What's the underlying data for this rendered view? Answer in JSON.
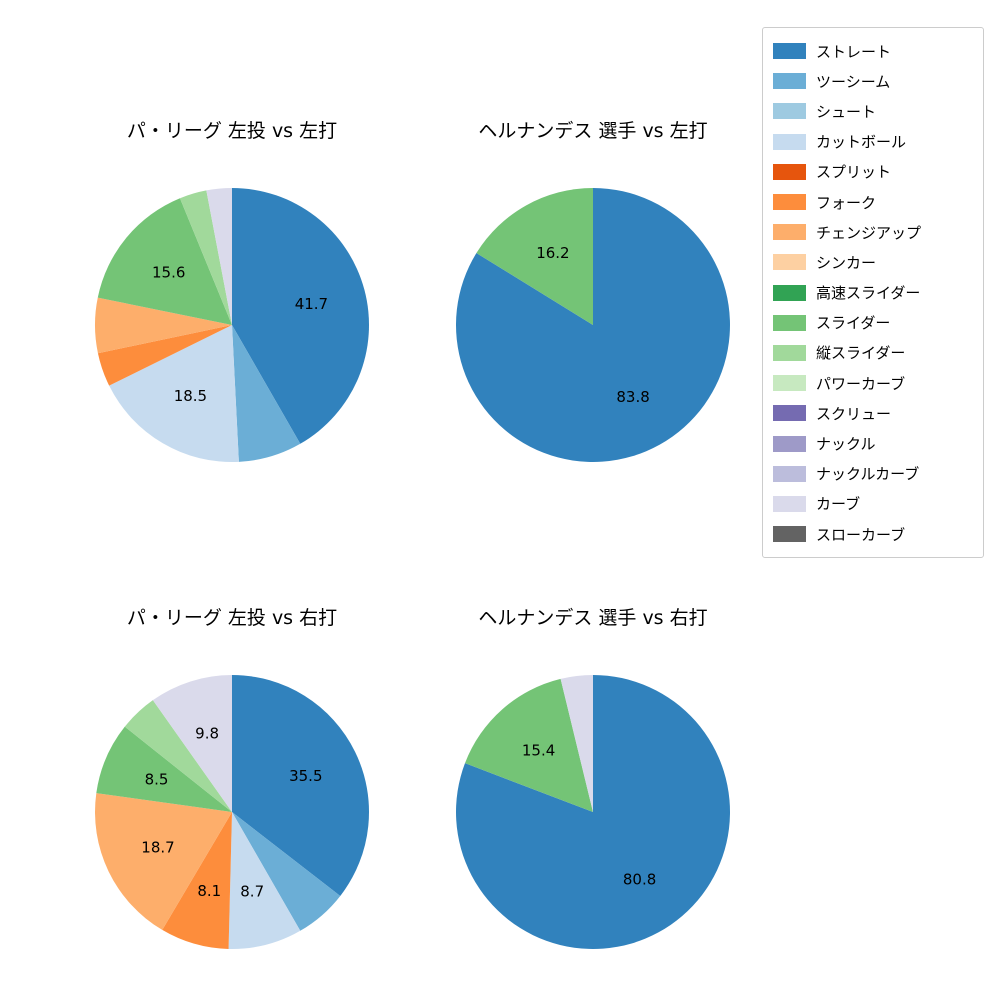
{
  "page": {
    "background": "#ffffff"
  },
  "legend": {
    "items": [
      {
        "label": "ストレート",
        "color": "#3182bd"
      },
      {
        "label": "ツーシーム",
        "color": "#6baed6"
      },
      {
        "label": "シュート",
        "color": "#9ecae1"
      },
      {
        "label": "カットボール",
        "color": "#c6dbef"
      },
      {
        "label": "スプリット",
        "color": "#e6550d"
      },
      {
        "label": "フォーク",
        "color": "#fd8d3c"
      },
      {
        "label": "チェンジアップ",
        "color": "#fdae6b"
      },
      {
        "label": "シンカー",
        "color": "#fdd0a2"
      },
      {
        "label": "高速スライダー",
        "color": "#31a354"
      },
      {
        "label": "スライダー",
        "color": "#74c476"
      },
      {
        "label": "縦スライダー",
        "color": "#a1d99b"
      },
      {
        "label": "パワーカーブ",
        "color": "#c7e9c0"
      },
      {
        "label": "スクリュー",
        "color": "#756bb1"
      },
      {
        "label": "ナックル",
        "color": "#9e9ac8"
      },
      {
        "label": "ナックルカーブ",
        "color": "#bcbddc"
      },
      {
        "label": "カーブ",
        "color": "#dadaeb"
      },
      {
        "label": "スローカーブ",
        "color": "#636363"
      }
    ]
  },
  "chart_data": [
    {
      "type": "pie",
      "title": "パ・リーグ 左投 vs 左打",
      "start_angle": 90,
      "direction": "clockwise",
      "slices": [
        {
          "label": "ストレート",
          "value": 41.7,
          "labeled": true
        },
        {
          "label": "ツーシーム",
          "value": 7.5,
          "labeled": false
        },
        {
          "label": "カットボール",
          "value": 18.5,
          "labeled": true
        },
        {
          "label": "フォーク",
          "value": 4.0,
          "labeled": false
        },
        {
          "label": "チェンジアップ",
          "value": 6.5,
          "labeled": false
        },
        {
          "label": "スライダー",
          "value": 15.6,
          "labeled": true
        },
        {
          "label": "縦スライダー",
          "value": 3.2,
          "labeled": false
        },
        {
          "label": "カーブ",
          "value": 3.0,
          "labeled": false
        }
      ]
    },
    {
      "type": "pie",
      "title": "ヘルナンデス 選手 vs 左打",
      "start_angle": 90,
      "direction": "clockwise",
      "slices": [
        {
          "label": "ストレート",
          "value": 83.8,
          "labeled": true
        },
        {
          "label": "スライダー",
          "value": 16.2,
          "labeled": true
        }
      ]
    },
    {
      "type": "pie",
      "title": "パ・リーグ 左投 vs 右打",
      "start_angle": 90,
      "direction": "clockwise",
      "slices": [
        {
          "label": "ストレート",
          "value": 35.5,
          "labeled": true
        },
        {
          "label": "ツーシーム",
          "value": 6.2,
          "labeled": false
        },
        {
          "label": "カットボール",
          "value": 8.7,
          "labeled": true
        },
        {
          "label": "フォーク",
          "value": 8.1,
          "labeled": true
        },
        {
          "label": "チェンジアップ",
          "value": 18.7,
          "labeled": true
        },
        {
          "label": "スライダー",
          "value": 8.5,
          "labeled": true
        },
        {
          "label": "縦スライダー",
          "value": 4.5,
          "labeled": false
        },
        {
          "label": "カーブ",
          "value": 9.8,
          "labeled": true
        }
      ]
    },
    {
      "type": "pie",
      "title": "ヘルナンデス 選手 vs 右打",
      "start_angle": 90,
      "direction": "clockwise",
      "slices": [
        {
          "label": "ストレート",
          "value": 80.8,
          "labeled": true
        },
        {
          "label": "スライダー",
          "value": 15.4,
          "labeled": true
        },
        {
          "label": "カーブ",
          "value": 3.8,
          "labeled": false
        }
      ]
    }
  ]
}
